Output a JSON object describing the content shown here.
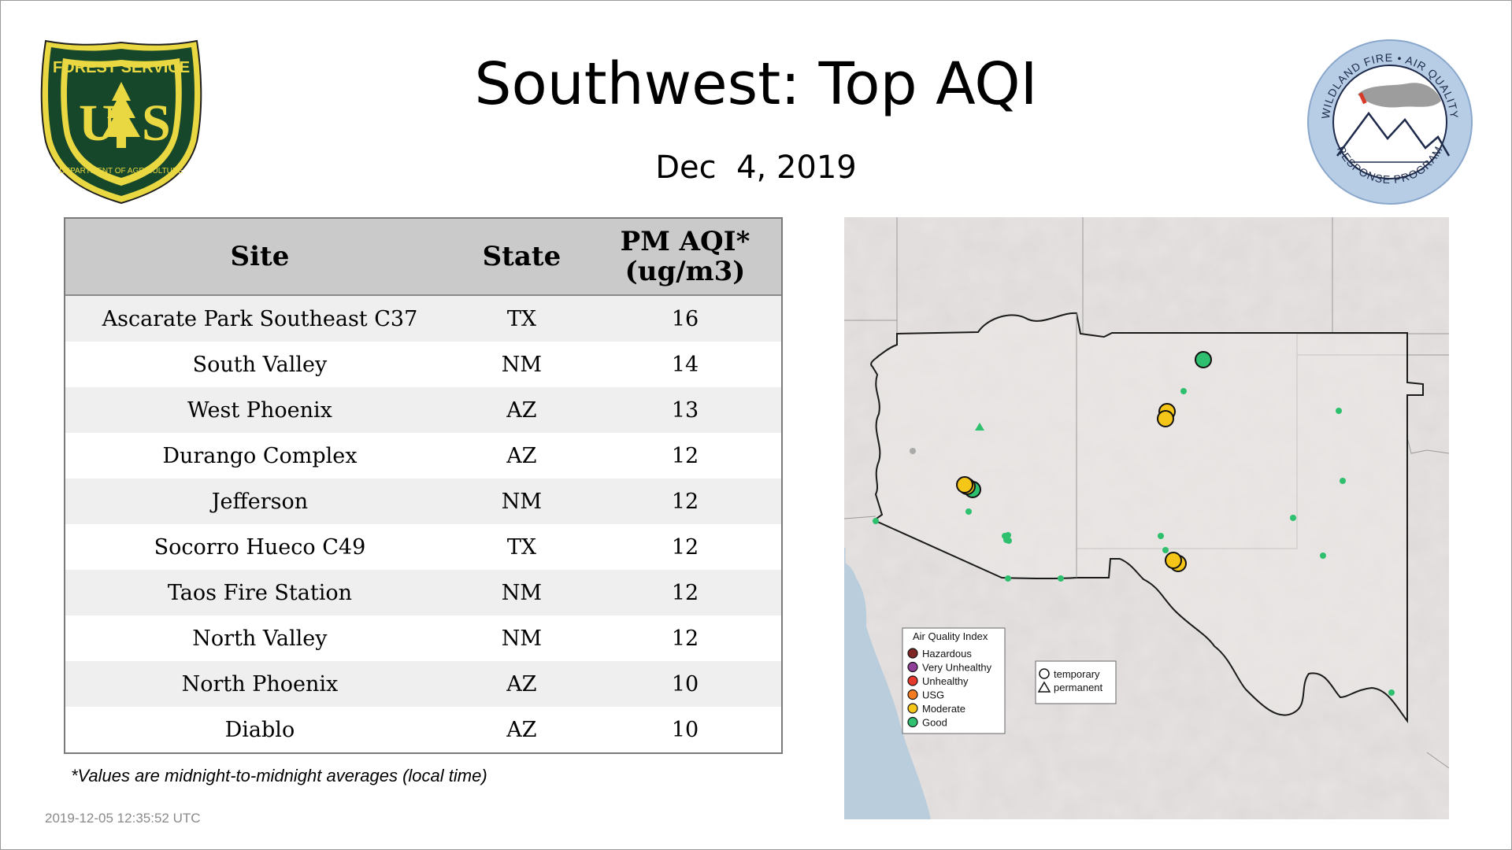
{
  "header": {
    "title": "Southwest: Top AQI",
    "date": "Dec  4, 2019"
  },
  "logos": {
    "left": {
      "top_text": "FOREST SERVICE",
      "mid_text": "U S",
      "bottom_text": "DEPARTMENT OF AGRICULTURE"
    },
    "right": {
      "top_text": "WILDLAND FIRE • AIR QUALITY",
      "bottom_text": "RESPONSE PROGRAM"
    }
  },
  "table": {
    "headers": {
      "site": "Site",
      "state": "State",
      "aqi_line1": "PM AQI*",
      "aqi_line2": "(ug/m3)"
    },
    "rows": [
      {
        "site": "Ascarate Park Southeast C37",
        "state": "TX",
        "aqi": "16"
      },
      {
        "site": "South Valley",
        "state": "NM",
        "aqi": "14"
      },
      {
        "site": "West Phoenix",
        "state": "AZ",
        "aqi": "13"
      },
      {
        "site": "Durango Complex",
        "state": "AZ",
        "aqi": "12"
      },
      {
        "site": "Jefferson",
        "state": "NM",
        "aqi": "12"
      },
      {
        "site": "Socorro Hueco C49",
        "state": "TX",
        "aqi": "12"
      },
      {
        "site": "Taos Fire Station",
        "state": "NM",
        "aqi": "12"
      },
      {
        "site": "North Valley",
        "state": "NM",
        "aqi": "12"
      },
      {
        "site": "North Phoenix",
        "state": "AZ",
        "aqi": "10"
      },
      {
        "site": "Diablo",
        "state": "AZ",
        "aqi": "10"
      }
    ]
  },
  "footnote": "*Values are midnight-to-midnight averages (local time)",
  "timestamp": "2019-12-05 12:35:52 UTC",
  "map": {
    "legend": {
      "title": "Air Quality Index",
      "categories": [
        {
          "label": "Hazardous",
          "color": "#7e2623"
        },
        {
          "label": "Very Unhealthy",
          "color": "#8f3f97"
        },
        {
          "label": "Unhealthy",
          "color": "#e53a2b"
        },
        {
          "label": "USG",
          "color": "#f47b20"
        },
        {
          "label": "Moderate",
          "color": "#f5c518"
        },
        {
          "label": "Good",
          "color": "#2ec06e"
        }
      ],
      "shapes": [
        {
          "label": "temporary",
          "icon": "circle-icon"
        },
        {
          "label": "permanent",
          "icon": "triangle-icon"
        }
      ]
    }
  }
}
